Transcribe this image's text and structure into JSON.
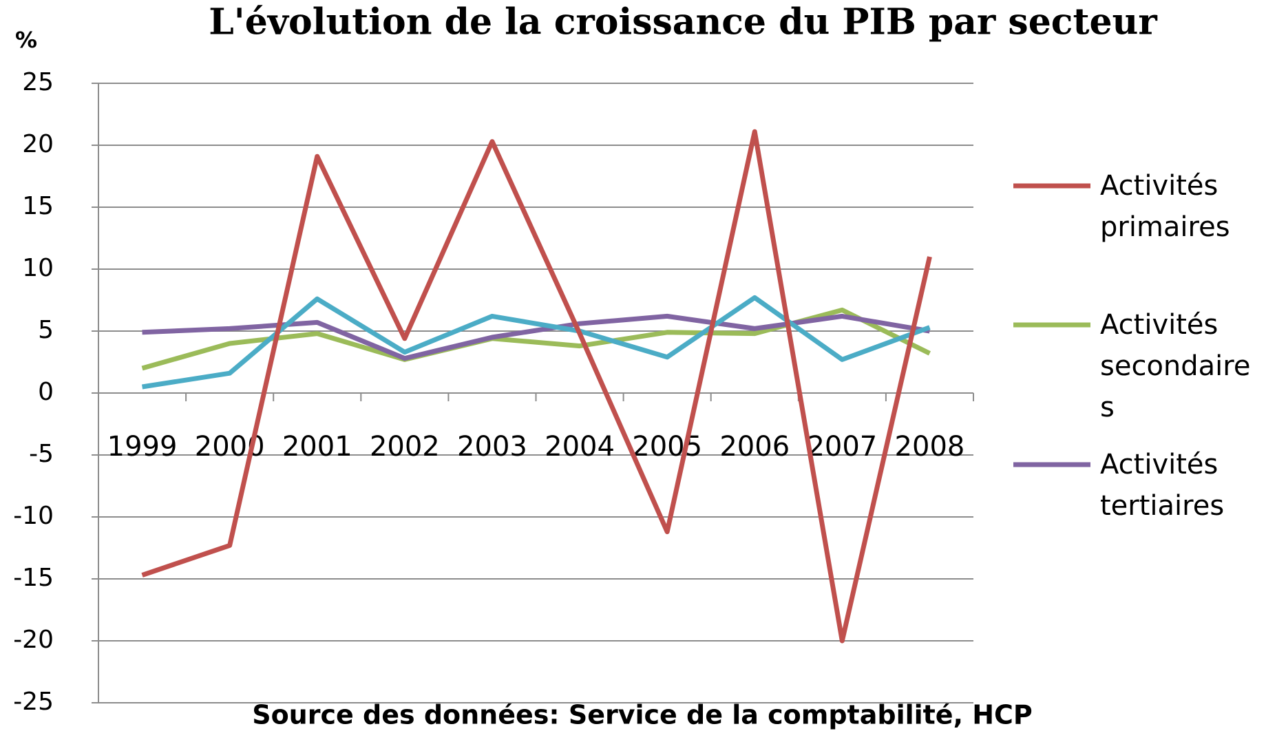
{
  "chart_data": {
    "type": "line",
    "title": "L'évolution de la croissance du PIB par secteur",
    "y_label": "%",
    "note": "Source des données: Service de la comptabilité, HCP",
    "categories": [
      "1999",
      "2000",
      "2001",
      "2002",
      "2003",
      "2004",
      "2005",
      "2006",
      "2007",
      "2008"
    ],
    "series": [
      {
        "name": "Activités primaires",
        "color": "#c0504d",
        "values": [
          -14.7,
          -12.3,
          19.1,
          4.4,
          20.3,
          4.8,
          -11.2,
          21.1,
          -20.0,
          11.0
        ]
      },
      {
        "name": "Activités secondaires",
        "color": "#9bbb59",
        "values": [
          2.0,
          4.0,
          4.8,
          2.7,
          4.4,
          3.8,
          4.9,
          4.8,
          6.7,
          3.2
        ]
      },
      {
        "name": "Activités tertiaires",
        "color": "#8064a2",
        "values": [
          4.9,
          5.2,
          5.7,
          2.8,
          4.5,
          5.6,
          6.2,
          5.2,
          6.2,
          5.0
        ]
      },
      {
        "color": "#4bacc6",
        "values": [
          0.5,
          1.6,
          7.6,
          3.3,
          6.2,
          5.0,
          2.9,
          7.7,
          2.7,
          5.3
        ]
      }
    ],
    "ylim": [
      -25,
      25
    ],
    "yticks": [
      -25,
      -20,
      -15,
      -10,
      -5,
      0,
      5,
      10,
      15,
      20,
      25
    ],
    "grid": true,
    "legend": "right"
  }
}
